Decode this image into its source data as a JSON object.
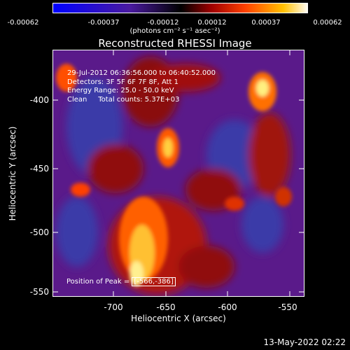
{
  "colorbar": {
    "ticks": [
      "-0.00062",
      "-0.00037",
      "-0.00012",
      "0.00012",
      "0.00037",
      "0.00062"
    ],
    "units": "(photons cm⁻² s⁻¹ asec⁻²)"
  },
  "title": "Reconstructed RHESSI Image",
  "annotations": [
    "29-Jul-2012 06:36:56.000 to 06:40:52.000",
    "Detectors: 3F 5F 6F 7F 8F, Att 1",
    "Energy Range: 25.0 - 50.0 keV",
    "Clean     Total counts: 5.37E+03"
  ],
  "peak": {
    "label": "Position of Peak =",
    "value": "[-566,-386]"
  },
  "axes": {
    "xlabel": "Heliocentric X (arcsec)",
    "ylabel": "Heliocentric Y (arcsec)",
    "xticks": [
      "-700",
      "-650",
      "-600",
      "-550"
    ],
    "yticks": [
      "-400",
      "-450",
      "-500",
      "-550"
    ]
  },
  "timestamp": "13-May-2022 02:22",
  "colors": {
    "cmap_low": "#0000ff",
    "cmap_mid": "#000000",
    "cmap_high": "#ffffff"
  }
}
